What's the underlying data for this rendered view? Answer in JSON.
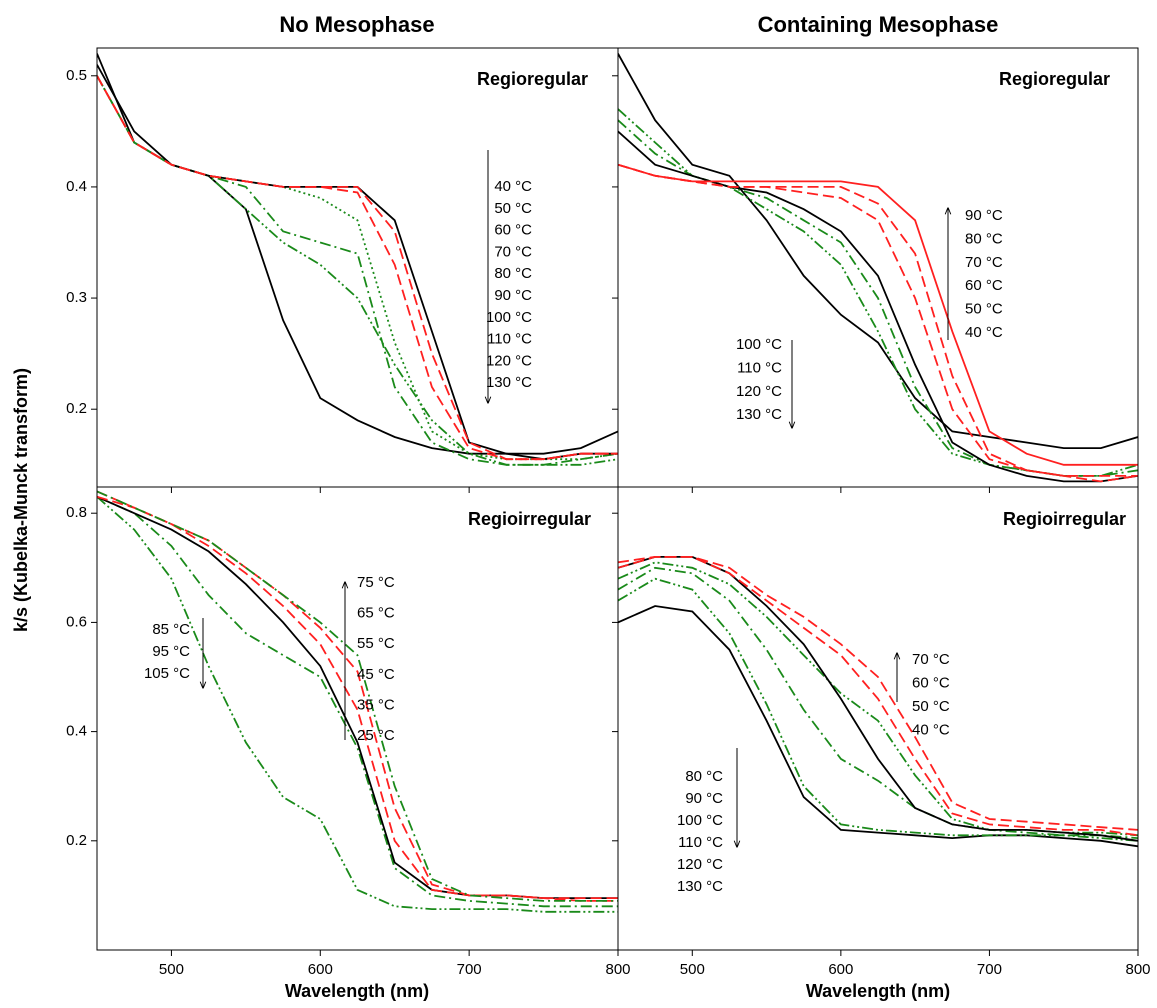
{
  "figure": {
    "column_titles": [
      "No Mesophase",
      "Containing Mesophase"
    ],
    "y_label": "k/s (Kubelka-Munck transform)",
    "x_labels": [
      "Wavelength (nm)",
      "Wavelength (nm)"
    ]
  },
  "chart_data": [
    {
      "type": "line",
      "annotation": "Regioregular",
      "x": [
        450,
        475,
        500,
        525,
        550,
        575,
        600,
        625,
        650,
        675,
        700,
        725,
        750,
        775,
        800
      ],
      "xlim": [
        450,
        800
      ],
      "xticks": [
        500,
        600,
        700,
        800
      ],
      "xtick_labels": false,
      "ylim": [
        0.13,
        0.525
      ],
      "yticks": [
        0.2,
        0.3,
        0.4,
        0.5
      ],
      "ytick_labels": true,
      "temp_groups": [
        {
          "labels": [
            "40 °C",
            "50 °C",
            "60 °C",
            "70 °C",
            "80 °C",
            "90 °C",
            "100 °C",
            "110 °C",
            "120 °C",
            "130 °C"
          ]
        }
      ],
      "series": [
        {
          "color": "#000000",
          "dash": "solid",
          "values": [
            0.52,
            0.44,
            0.42,
            0.41,
            0.38,
            0.28,
            0.21,
            0.19,
            0.175,
            0.165,
            0.16,
            0.16,
            0.16,
            0.165,
            0.18
          ]
        },
        {
          "color": "#1a8a1a",
          "dash": "dashdotdot",
          "values": [
            0.5,
            0.44,
            0.42,
            0.41,
            0.38,
            0.35,
            0.33,
            0.3,
            0.24,
            0.19,
            0.16,
            0.15,
            0.15,
            0.15,
            0.155
          ]
        },
        {
          "color": "#1a8a1a",
          "dash": "dashdot",
          "values": [
            0.5,
            0.44,
            0.42,
            0.41,
            0.4,
            0.36,
            0.35,
            0.34,
            0.22,
            0.17,
            0.155,
            0.15,
            0.15,
            0.155,
            0.16
          ]
        },
        {
          "color": "#1a8a1a",
          "dash": "dot",
          "values": [
            0.5,
            0.44,
            0.42,
            0.41,
            0.405,
            0.4,
            0.39,
            0.37,
            0.26,
            0.18,
            0.16,
            0.155,
            0.155,
            0.155,
            0.16
          ]
        },
        {
          "color": "#000000",
          "dash": "solid",
          "values": [
            0.51,
            0.45,
            0.42,
            0.41,
            0.405,
            0.4,
            0.4,
            0.4,
            0.37,
            0.27,
            0.17,
            0.16,
            0.155,
            0.16,
            0.16
          ]
        },
        {
          "color": "#ff2020",
          "dash": "dash",
          "values": [
            0.5,
            0.44,
            0.42,
            0.41,
            0.405,
            0.4,
            0.4,
            0.395,
            0.33,
            0.22,
            0.165,
            0.155,
            0.155,
            0.16,
            0.16
          ]
        },
        {
          "color": "#ff2020",
          "dash": "dash",
          "values": [
            0.5,
            0.44,
            0.42,
            0.41,
            0.405,
            0.4,
            0.4,
            0.4,
            0.36,
            0.25,
            0.17,
            0.155,
            0.155,
            0.16,
            0.16
          ]
        }
      ]
    },
    {
      "type": "line",
      "annotation": "Regioregular",
      "x": [
        450,
        475,
        500,
        525,
        550,
        575,
        600,
        625,
        650,
        675,
        700,
        725,
        750,
        775,
        800
      ],
      "xlim": [
        450,
        800
      ],
      "xticks": [
        500,
        600,
        700,
        800
      ],
      "xtick_labels": false,
      "ylim": [
        0.13,
        0.525
      ],
      "yticks": [
        0.2,
        0.3,
        0.4,
        0.5
      ],
      "ytick_labels": false,
      "temp_groups": [
        {
          "labels": [
            "90 °C",
            "80 °C",
            "70 °C",
            "60 °C",
            "50 °C",
            "40 °C"
          ]
        },
        {
          "labels": [
            "100 °C",
            "110 °C",
            "120 °C",
            "130 °C"
          ]
        }
      ],
      "series": [
        {
          "color": "#000000",
          "dash": "solid",
          "values": [
            0.52,
            0.46,
            0.42,
            0.41,
            0.37,
            0.32,
            0.285,
            0.26,
            0.21,
            0.18,
            0.175,
            0.17,
            0.165,
            0.165,
            0.175
          ]
        },
        {
          "color": "#1a8a1a",
          "dash": "dashdotdot",
          "values": [
            0.47,
            0.44,
            0.41,
            0.4,
            0.38,
            0.36,
            0.33,
            0.27,
            0.2,
            0.16,
            0.15,
            0.145,
            0.14,
            0.14,
            0.15
          ]
        },
        {
          "color": "#1a8a1a",
          "dash": "dashdot",
          "values": [
            0.46,
            0.43,
            0.41,
            0.4,
            0.39,
            0.37,
            0.35,
            0.3,
            0.22,
            0.165,
            0.15,
            0.145,
            0.14,
            0.14,
            0.145
          ]
        },
        {
          "color": "#000000",
          "dash": "solid",
          "values": [
            0.45,
            0.42,
            0.41,
            0.4,
            0.395,
            0.38,
            0.36,
            0.32,
            0.24,
            0.17,
            0.15,
            0.14,
            0.135,
            0.135,
            0.14
          ]
        },
        {
          "color": "#ff2020",
          "dash": "dash",
          "values": [
            0.42,
            0.41,
            0.405,
            0.4,
            0.4,
            0.395,
            0.39,
            0.37,
            0.3,
            0.2,
            0.155,
            0.145,
            0.14,
            0.135,
            0.14
          ]
        },
        {
          "color": "#ff2020",
          "dash": "dash",
          "values": [
            0.42,
            0.41,
            0.405,
            0.4,
            0.4,
            0.4,
            0.4,
            0.385,
            0.34,
            0.23,
            0.16,
            0.145,
            0.14,
            0.14,
            0.14
          ]
        },
        {
          "color": "#ff2020",
          "dash": "solid",
          "values": [
            0.42,
            0.41,
            0.405,
            0.405,
            0.405,
            0.405,
            0.405,
            0.4,
            0.37,
            0.27,
            0.18,
            0.16,
            0.15,
            0.15,
            0.15
          ]
        }
      ]
    },
    {
      "type": "line",
      "annotation": "Regioirregular",
      "x": [
        450,
        475,
        500,
        525,
        550,
        575,
        600,
        625,
        650,
        675,
        700,
        725,
        750,
        775,
        800
      ],
      "xlim": [
        450,
        800
      ],
      "xticks": [
        500,
        600,
        700,
        800
      ],
      "xtick_labels": true,
      "ylim": [
        0,
        0.848
      ],
      "yticks": [
        0.2,
        0.4,
        0.6,
        0.8
      ],
      "ytick_labels": true,
      "temp_groups": [
        {
          "labels": [
            "85 °C",
            "95 °C",
            "105 °C"
          ]
        },
        {
          "labels": [
            "75 °C",
            "65 °C",
            "55 °C",
            "45 °C",
            "35 °C",
            "25 °C"
          ]
        }
      ],
      "series": [
        {
          "color": "#1a8a1a",
          "dash": "dashdotdot",
          "values": [
            0.83,
            0.77,
            0.68,
            0.52,
            0.38,
            0.28,
            0.24,
            0.11,
            0.08,
            0.075,
            0.075,
            0.075,
            0.07,
            0.07,
            0.07
          ]
        },
        {
          "color": "#1a8a1a",
          "dash": "dashdot",
          "values": [
            0.83,
            0.8,
            0.74,
            0.65,
            0.58,
            0.54,
            0.5,
            0.37,
            0.15,
            0.1,
            0.09,
            0.085,
            0.08,
            0.08,
            0.08
          ]
        },
        {
          "color": "#000000",
          "dash": "solid",
          "values": [
            0.83,
            0.8,
            0.77,
            0.73,
            0.67,
            0.6,
            0.52,
            0.38,
            0.16,
            0.11,
            0.1,
            0.1,
            0.095,
            0.095,
            0.095
          ]
        },
        {
          "color": "#ff2020",
          "dash": "dash",
          "values": [
            0.83,
            0.81,
            0.78,
            0.74,
            0.69,
            0.63,
            0.56,
            0.44,
            0.2,
            0.11,
            0.1,
            0.1,
            0.095,
            0.095,
            0.095
          ]
        },
        {
          "color": "#ff2020",
          "dash": "dash",
          "values": [
            0.84,
            0.81,
            0.78,
            0.75,
            0.7,
            0.65,
            0.59,
            0.51,
            0.26,
            0.12,
            0.1,
            0.1,
            0.095,
            0.09,
            0.09
          ]
        },
        {
          "color": "#1a8a1a",
          "dash": "dashdot",
          "values": [
            0.84,
            0.81,
            0.78,
            0.75,
            0.7,
            0.65,
            0.6,
            0.54,
            0.3,
            0.13,
            0.1,
            0.095,
            0.09,
            0.09,
            0.09
          ]
        }
      ]
    },
    {
      "type": "line",
      "annotation": "Regioirregular",
      "x": [
        450,
        475,
        500,
        525,
        550,
        575,
        600,
        625,
        650,
        675,
        700,
        725,
        750,
        775,
        800
      ],
      "xlim": [
        450,
        800
      ],
      "xticks": [
        500,
        600,
        700,
        800
      ],
      "xtick_labels": true,
      "ylim": [
        0,
        0.848
      ],
      "yticks": [
        0.2,
        0.4,
        0.6,
        0.8
      ],
      "ytick_labels": false,
      "temp_groups": [
        {
          "labels": [
            "70 °C",
            "60 °C",
            "50 °C",
            "40 °C"
          ]
        },
        {
          "labels": [
            "80 °C",
            "90 °C",
            "100 °C",
            "110 °C",
            "120 °C",
            "130 °C"
          ]
        }
      ],
      "series": [
        {
          "color": "#000000",
          "dash": "solid",
          "values": [
            0.6,
            0.63,
            0.62,
            0.55,
            0.42,
            0.28,
            0.22,
            0.215,
            0.21,
            0.205,
            0.21,
            0.21,
            0.205,
            0.2,
            0.19
          ]
        },
        {
          "color": "#1a8a1a",
          "dash": "dashdotdot",
          "values": [
            0.64,
            0.68,
            0.66,
            0.58,
            0.45,
            0.3,
            0.23,
            0.22,
            0.215,
            0.21,
            0.21,
            0.21,
            0.21,
            0.205,
            0.2
          ]
        },
        {
          "color": "#1a8a1a",
          "dash": "dashdot",
          "values": [
            0.66,
            0.7,
            0.69,
            0.64,
            0.55,
            0.44,
            0.35,
            0.31,
            0.26,
            0.23,
            0.22,
            0.215,
            0.21,
            0.21,
            0.205
          ]
        },
        {
          "color": "#1a8a1a",
          "dash": "dashdotdot",
          "values": [
            0.68,
            0.71,
            0.7,
            0.67,
            0.61,
            0.54,
            0.47,
            0.42,
            0.32,
            0.24,
            0.22,
            0.22,
            0.215,
            0.215,
            0.21
          ]
        },
        {
          "color": "#000000",
          "dash": "solid",
          "values": [
            0.7,
            0.72,
            0.72,
            0.69,
            0.63,
            0.56,
            0.46,
            0.35,
            0.26,
            0.23,
            0.22,
            0.22,
            0.215,
            0.21,
            0.2
          ]
        },
        {
          "color": "#ff2020",
          "dash": "dash",
          "values": [
            0.7,
            0.72,
            0.72,
            0.69,
            0.64,
            0.59,
            0.54,
            0.46,
            0.35,
            0.25,
            0.23,
            0.225,
            0.22,
            0.22,
            0.21
          ]
        },
        {
          "color": "#ff2020",
          "dash": "dash",
          "values": [
            0.71,
            0.72,
            0.72,
            0.7,
            0.65,
            0.61,
            0.56,
            0.5,
            0.39,
            0.27,
            0.24,
            0.235,
            0.23,
            0.225,
            0.22
          ]
        }
      ]
    }
  ]
}
